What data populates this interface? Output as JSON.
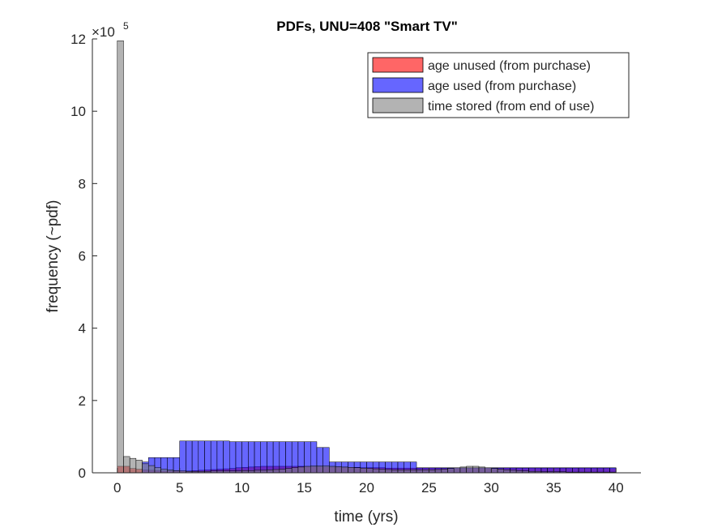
{
  "chart_data": {
    "type": "bar",
    "title": "PDFs, UNU=408 \"Smart TV\"",
    "xlabel": "time (yrs)",
    "ylabel": "frequency (~pdf)",
    "exponent_base": "×10",
    "exponent_power": "5",
    "xlim": [
      -2,
      42
    ],
    "ylim": [
      0,
      12
    ],
    "y_scale_note": "values in units of 1e5",
    "xticks": [
      0,
      5,
      10,
      15,
      20,
      25,
      30,
      35,
      40
    ],
    "yticks": [
      0,
      2,
      4,
      6,
      8,
      10,
      12
    ],
    "bin_width": 0.5,
    "bin_start": 0,
    "grid": false,
    "legend_position": "top-right",
    "series": [
      {
        "name": "age unused (from purchase)",
        "color": "#ff0000",
        "values": [
          0.18,
          0.18,
          0.12,
          0.1,
          0.08,
          0.07,
          0.06,
          0.05,
          0.05,
          0.05,
          0.05,
          0.05,
          0.06,
          0.07,
          0.08,
          0.09,
          0.1,
          0.11,
          0.12,
          0.14,
          0.15,
          0.16,
          0.17,
          0.18,
          0.18,
          0.18,
          0.18,
          0.18,
          0.18,
          0.18,
          0.17,
          0.17,
          0.17,
          0.16,
          0.16,
          0.16,
          0.15,
          0.15,
          0.15,
          0.14,
          0.14,
          0.14,
          0.14,
          0.13,
          0.13,
          0.13,
          0.13,
          0.13,
          0.13,
          0.13,
          0.13,
          0.13,
          0.13,
          0.13,
          0.13,
          0.13,
          0.13,
          0.13,
          0.13,
          0.13,
          0.13,
          0.13,
          0.13,
          0.13,
          0.13,
          0.13,
          0.13,
          0.13,
          0.13,
          0.13,
          0.13,
          0.13,
          0.13,
          0.13,
          0.13,
          0.13,
          0.13,
          0.13,
          0.13,
          0.12
        ]
      },
      {
        "name": "age used (from purchase)",
        "color": "#0000ff",
        "values": [
          0.0,
          0.0,
          0.0,
          0.0,
          0.3,
          0.42,
          0.42,
          0.42,
          0.42,
          0.42,
          0.88,
          0.88,
          0.88,
          0.88,
          0.88,
          0.88,
          0.88,
          0.88,
          0.86,
          0.86,
          0.86,
          0.86,
          0.86,
          0.86,
          0.86,
          0.86,
          0.86,
          0.86,
          0.86,
          0.86,
          0.86,
          0.86,
          0.7,
          0.7,
          0.3,
          0.3,
          0.3,
          0.3,
          0.3,
          0.3,
          0.3,
          0.3,
          0.3,
          0.3,
          0.3,
          0.3,
          0.3,
          0.3,
          0.14,
          0.14,
          0.14,
          0.14,
          0.14,
          0.14,
          0.14,
          0.14,
          0.14,
          0.14,
          0.14,
          0.14,
          0.14,
          0.14,
          0.14,
          0.14,
          0.14,
          0.14,
          0.14,
          0.14,
          0.14,
          0.14,
          0.14,
          0.14,
          0.14,
          0.14,
          0.14,
          0.14,
          0.14,
          0.14,
          0.14,
          0.14
        ]
      },
      {
        "name": "time stored (from end of use)",
        "color": "#808080",
        "values": [
          11.95,
          0.45,
          0.4,
          0.35,
          0.25,
          0.2,
          0.14,
          0.1,
          0.08,
          0.06,
          0.05,
          0.04,
          0.04,
          0.04,
          0.04,
          0.05,
          0.05,
          0.05,
          0.05,
          0.05,
          0.06,
          0.06,
          0.07,
          0.07,
          0.08,
          0.09,
          0.1,
          0.12,
          0.14,
          0.16,
          0.18,
          0.19,
          0.19,
          0.19,
          0.18,
          0.17,
          0.16,
          0.15,
          0.14,
          0.13,
          0.12,
          0.11,
          0.1,
          0.09,
          0.08,
          0.08,
          0.08,
          0.08,
          0.08,
          0.08,
          0.08,
          0.09,
          0.1,
          0.12,
          0.14,
          0.16,
          0.18,
          0.18,
          0.16,
          0.14,
          0.12,
          0.1,
          0.08,
          0.07,
          0.06,
          0.05,
          0.04,
          0.04,
          0.03,
          0.03,
          0.03,
          0.03,
          0.02,
          0.02,
          0.02,
          0.02,
          0.02,
          0.02,
          0.02,
          0.02
        ]
      }
    ]
  }
}
